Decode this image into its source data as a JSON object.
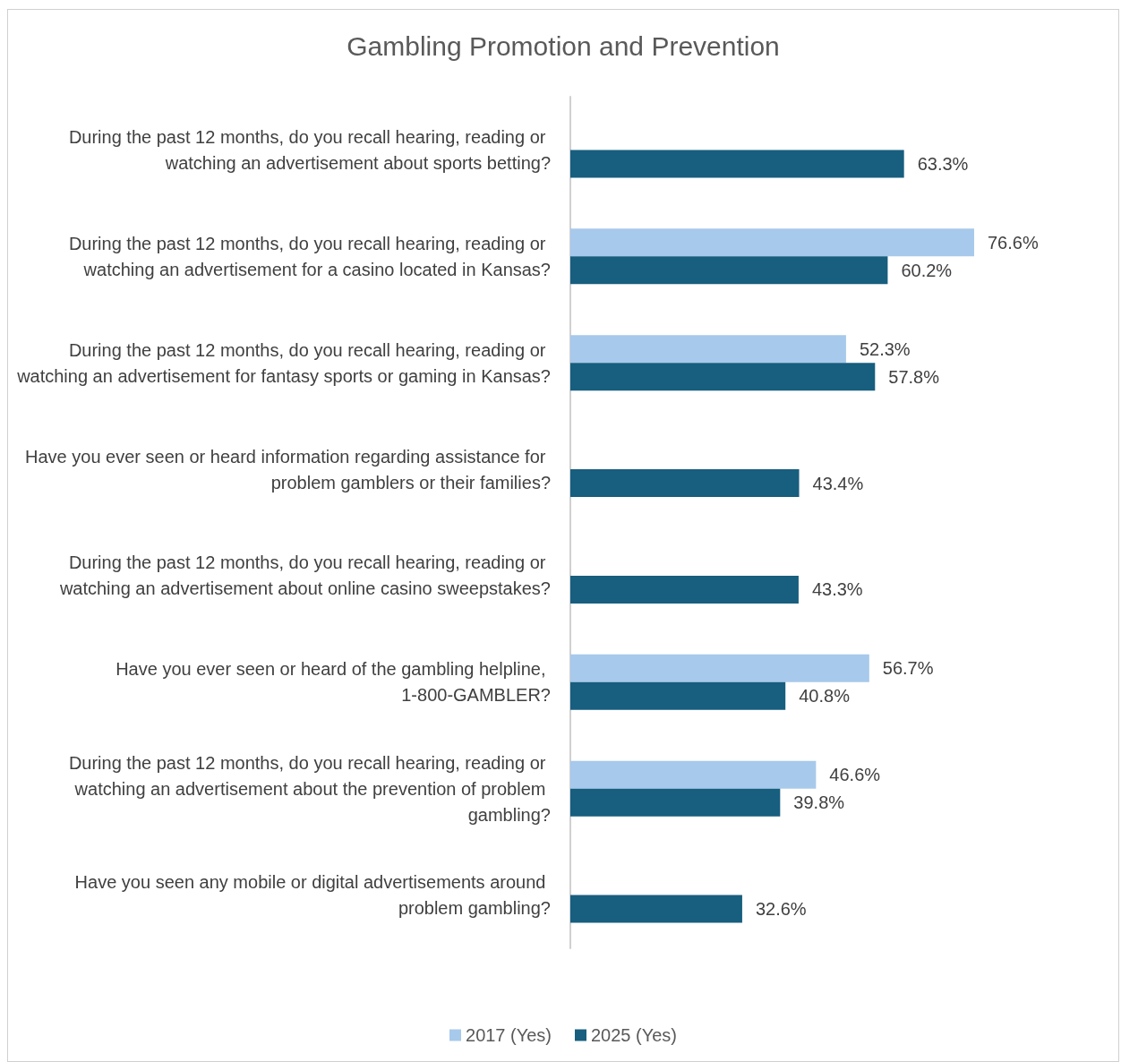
{
  "chart_data": {
    "type": "bar",
    "orientation": "horizontal",
    "title": "Gambling Promotion and Prevention",
    "categories": [
      "During the past 12 months, do you recall hearing, reading or watching an advertisement about sports betting?",
      "During the past 12 months, do you recall hearing, reading or watching an advertisement for a casino located in Kansas?",
      "During the past 12 months, do you recall hearing, reading or watching an advertisement for fantasy sports or gaming in Kansas?",
      "Have you ever seen or heard information regarding assistance for problem gamblers or their families?",
      "During the past 12 months, do you recall hearing, reading or watching an advertisement about online casino sweepstakes?",
      "Have you ever seen or heard of the gambling helpline, 1-800-GAMBLER?",
      "During the past 12 months, do you recall hearing, reading or watching an advertisement about the prevention of problem gambling?",
      "Have you seen any mobile or digital advertisements around problem gambling?"
    ],
    "series": [
      {
        "name": "2017 (Yes)",
        "color": "#a7c9eb",
        "values": [
          null,
          76.6,
          52.3,
          null,
          null,
          56.7,
          46.6,
          null
        ],
        "value_labels": [
          null,
          "76.6%",
          "52.3%",
          null,
          null,
          "56.7%",
          "46.6%",
          null
        ]
      },
      {
        "name": "2025 (Yes)",
        "color": "#175e7f",
        "values": [
          63.3,
          60.2,
          57.8,
          43.4,
          43.3,
          40.8,
          39.8,
          32.6
        ],
        "value_labels": [
          "63.3%",
          "60.2%",
          "57.8%",
          "43.4%",
          "43.3%",
          "40.8%",
          "39.8%",
          "32.6%"
        ]
      }
    ],
    "legend": "bottom",
    "grid": false
  }
}
